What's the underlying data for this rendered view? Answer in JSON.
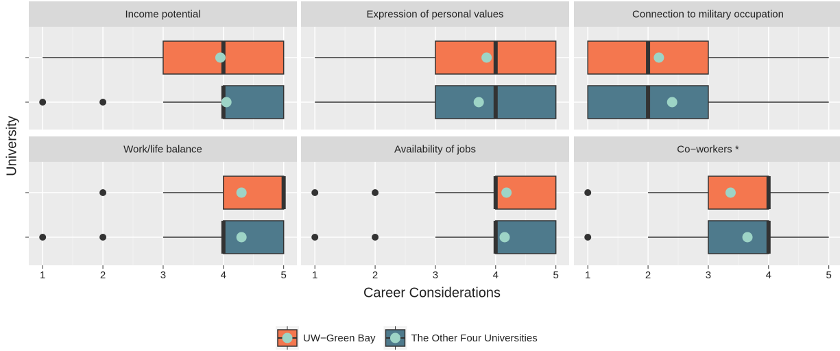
{
  "chart_data": {
    "type": "box",
    "xlabel": "Career Considerations",
    "ylabel": "University",
    "xlim": [
      0.77,
      5.22
    ],
    "xticks": [
      1,
      2,
      3,
      4,
      5
    ],
    "grid": true,
    "legend": "bottom",
    "mean_color": "#9dd4c6",
    "outlier_color": "#333333",
    "series": [
      {
        "name": "UW−Green Bay",
        "color": "#f4774f"
      },
      {
        "name": "The Other Four Universities",
        "color": "#4e7a8c"
      }
    ],
    "facets": [
      {
        "title": "Income potential",
        "boxes": [
          {
            "min": 1,
            "q1": 3,
            "median": 4,
            "q3": 5,
            "max": 5,
            "mean": 3.95,
            "outliers": []
          },
          {
            "min": 3,
            "q1": 4,
            "median": 4,
            "q3": 5,
            "max": 5,
            "mean": 4.05,
            "outliers": [
              1,
              2
            ]
          }
        ]
      },
      {
        "title": "Expression of personal values",
        "boxes": [
          {
            "min": 1,
            "q1": 3,
            "median": 4,
            "q3": 5,
            "max": 5,
            "mean": 3.85,
            "outliers": []
          },
          {
            "min": 1,
            "q1": 3,
            "median": 4,
            "q3": 5,
            "max": 5,
            "mean": 3.72,
            "outliers": []
          }
        ]
      },
      {
        "title": "Connection to military occupation",
        "boxes": [
          {
            "min": 1,
            "q1": 1,
            "median": 2,
            "q3": 3,
            "max": 5,
            "mean": 2.18,
            "outliers": []
          },
          {
            "min": 1,
            "q1": 1,
            "median": 2,
            "q3": 3,
            "max": 5,
            "mean": 2.4,
            "outliers": []
          }
        ]
      },
      {
        "title": "Work/life balance",
        "boxes": [
          {
            "min": 3,
            "q1": 4,
            "median": 5,
            "q3": 5,
            "max": 5,
            "mean": 4.3,
            "outliers": [
              2
            ]
          },
          {
            "min": 3,
            "q1": 4,
            "median": 4,
            "q3": 5,
            "max": 5,
            "mean": 4.3,
            "outliers": [
              1,
              2
            ]
          }
        ]
      },
      {
        "title": "Availability of jobs",
        "boxes": [
          {
            "min": 3,
            "q1": 4,
            "median": 4,
            "q3": 5,
            "max": 5,
            "mean": 4.18,
            "outliers": [
              1,
              2
            ]
          },
          {
            "min": 3,
            "q1": 4,
            "median": 4,
            "q3": 5,
            "max": 5,
            "mean": 4.15,
            "outliers": [
              1,
              2
            ]
          }
        ]
      },
      {
        "title": "Co−workers *",
        "boxes": [
          {
            "min": 2,
            "q1": 3,
            "median": 4,
            "q3": 4,
            "max": 5,
            "mean": 3.37,
            "outliers": [
              1
            ]
          },
          {
            "min": 2,
            "q1": 3,
            "median": 4,
            "q3": 4,
            "max": 5,
            "mean": 3.65,
            "outliers": [
              1
            ]
          }
        ]
      }
    ]
  }
}
